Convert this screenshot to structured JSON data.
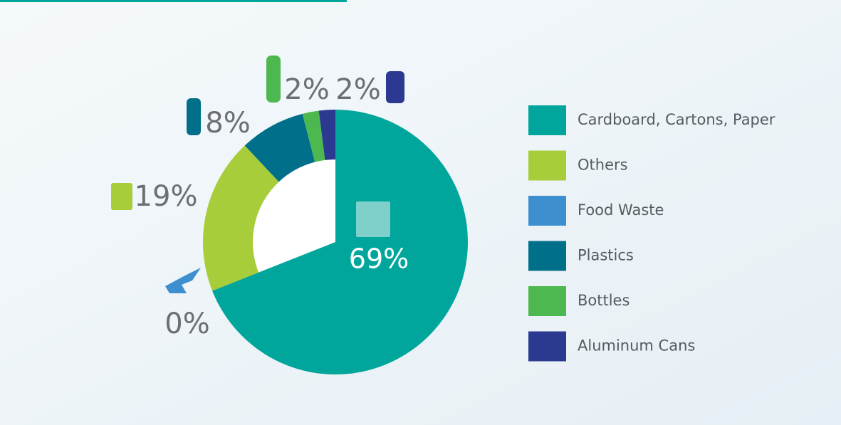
{
  "chart_data": {
    "type": "donut",
    "categories": [
      "Cardboard, Cartons, Paper",
      "Others",
      "Food Waste",
      "Plastics",
      "Bottles",
      "Aluminum Cans"
    ],
    "values": [
      69,
      19,
      0,
      8,
      2,
      2
    ],
    "value_labels": [
      "69%",
      "19%",
      "0%",
      "8%",
      "2%",
      "2%"
    ],
    "colors": [
      "#00a69c",
      "#a8cd3a",
      "#3d8fd0",
      "#00708a",
      "#4cb84f",
      "#2b3990"
    ],
    "legend": "right"
  }
}
